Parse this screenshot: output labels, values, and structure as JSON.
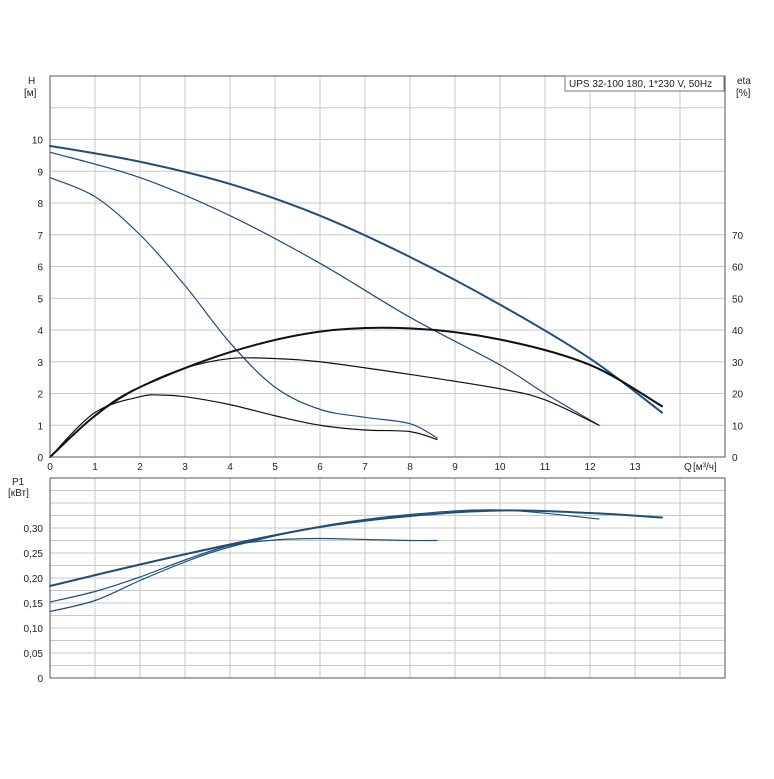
{
  "chart_data": [
    {
      "type": "line",
      "title": "UPS 32-100  180, 1*230 V, 50Hz",
      "ylabel": "H",
      "yunit": "[м]",
      "y2label": "eta",
      "y2unit": "[%]",
      "xlabel": "Q",
      "xunit": "[м³/ч]",
      "xlim": [
        0,
        15
      ],
      "ylim": [
        0,
        12
      ],
      "y2lim": [
        0,
        120
      ],
      "x_ticks": [
        0,
        1,
        2,
        3,
        4,
        5,
        6,
        7,
        8,
        9,
        10,
        11,
        12,
        13
      ],
      "y_ticks": [
        0,
        1,
        2,
        3,
        4,
        5,
        6,
        7,
        8,
        9,
        10
      ],
      "y2_ticks": [
        0,
        10,
        20,
        30,
        40,
        50,
        60,
        70
      ],
      "grid": true,
      "head_curves": [
        {
          "x": [
            0,
            2,
            4,
            6,
            8,
            10,
            12,
            13.6
          ],
          "y": [
            9.8,
            9.3,
            8.6,
            7.6,
            6.3,
            4.8,
            3.1,
            1.4
          ]
        },
        {
          "x": [
            0,
            2,
            4,
            6,
            8,
            10,
            11,
            12.2
          ],
          "y": [
            9.6,
            8.8,
            7.6,
            6.1,
            4.4,
            2.9,
            2.0,
            1.0
          ]
        },
        {
          "x": [
            0,
            1,
            2,
            3,
            4,
            5,
            6,
            7,
            8,
            8.6
          ],
          "y": [
            8.8,
            8.2,
            7.0,
            5.4,
            3.6,
            2.2,
            1.5,
            1.25,
            1.05,
            0.6
          ]
        }
      ],
      "eta_curves": [
        {
          "x": [
            0,
            1,
            2,
            4,
            6,
            8,
            10,
            12,
            13.6
          ],
          "y": [
            0,
            13,
            22,
            33,
            39.5,
            40.5,
            37,
            29,
            16
          ]
        },
        {
          "x": [
            0,
            1,
            2,
            3,
            4,
            5,
            6,
            8,
            10,
            11,
            12.2
          ],
          "y": [
            0,
            13,
            22,
            28,
            31,
            31,
            30,
            26,
            21.5,
            18,
            10
          ]
        },
        {
          "x": [
            0,
            1,
            2,
            2.5,
            3,
            4,
            5,
            6,
            7,
            8,
            8.6
          ],
          "y": [
            0,
            14,
            19,
            19.5,
            19,
            16.5,
            13,
            10,
            8.5,
            8,
            5.5
          ]
        }
      ]
    },
    {
      "type": "line",
      "ylabel": "P1",
      "yunit": "[кВт]",
      "xlim": [
        0,
        15
      ],
      "ylim": [
        0,
        0.4
      ],
      "y_ticks": [
        0,
        0.05,
        0.1,
        0.15,
        0.2,
        0.25,
        0.3
      ],
      "y_tick_labels": [
        "0",
        "0,05",
        "0,10",
        "0,15",
        "0,20",
        "0,25",
        "0,30"
      ],
      "grid": true,
      "power_curves": [
        {
          "x": [
            0,
            2,
            4,
            6,
            8,
            10,
            12,
            13.6
          ],
          "y": [
            0.184,
            0.227,
            0.267,
            0.302,
            0.324,
            0.335,
            0.33,
            0.321
          ]
        },
        {
          "x": [
            0,
            1,
            2,
            3,
            4,
            6,
            8,
            10,
            12.2
          ],
          "y": [
            0.133,
            0.155,
            0.195,
            0.232,
            0.262,
            0.303,
            0.327,
            0.336,
            0.318
          ]
        },
        {
          "x": [
            0,
            1,
            2,
            3,
            4,
            5,
            6,
            7,
            8,
            8.6
          ],
          "y": [
            0.152,
            0.173,
            0.202,
            0.236,
            0.265,
            0.276,
            0.279,
            0.277,
            0.275,
            0.275
          ]
        }
      ]
    }
  ],
  "colors": {
    "head": "#1f4e7a",
    "eta": "#111111",
    "power": "#1f4e7a"
  }
}
